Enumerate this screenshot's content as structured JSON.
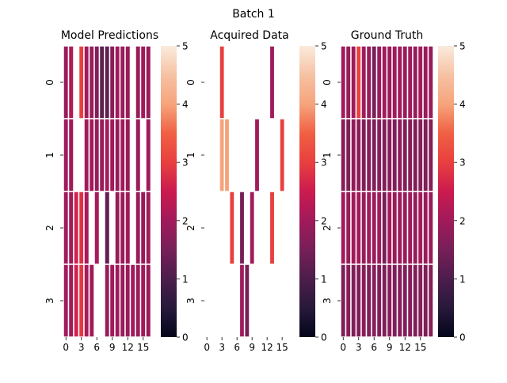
{
  "figure": {
    "title": "Batch 1"
  },
  "palette": [
    "#03051a",
    "#28193b",
    "#4c1d4b",
    "#761f58",
    "#a11a5b",
    "#cb1b4f",
    "#e83f3f",
    "#f06043",
    "#f6a47c",
    "#f6c2a3",
    "#faebdd"
  ],
  "chart_data": [
    {
      "type": "heatmap",
      "title": "Model Predictions",
      "rows": 4,
      "cols": 18,
      "row_tick_labels": [
        "0",
        "1",
        "2",
        "3"
      ],
      "col_tick_labels": [
        "0",
        "3",
        "6",
        "9",
        "12",
        "15"
      ],
      "colorbar": {
        "vmin": 0,
        "vmax": 5,
        "ticks": [
          "0",
          "1",
          "2",
          "3",
          "4",
          "5"
        ]
      },
      "values": [
        [
          1.9,
          2.2,
          null,
          3.0,
          2.0,
          1.9,
          1.6,
          1.2,
          1.2,
          1.7,
          2.0,
          1.9,
          1.9,
          null,
          1.9,
          2.0,
          1.9,
          null
        ],
        [
          2.0,
          2.0,
          null,
          null,
          2.0,
          2.0,
          1.9,
          1.9,
          2.1,
          2.0,
          1.9,
          2.0,
          1.9,
          null,
          1.9,
          null,
          2.0,
          null
        ],
        [
          2.0,
          2.0,
          2.6,
          2.8,
          2.1,
          null,
          2.1,
          null,
          1.3,
          null,
          1.9,
          1.9,
          2.0,
          null,
          1.9,
          1.9,
          2.0,
          null
        ],
        [
          2.0,
          2.0,
          2.6,
          2.9,
          2.1,
          2.0,
          null,
          null,
          1.9,
          2.0,
          2.0,
          1.9,
          1.9,
          2.0,
          1.9,
          2.0,
          1.9,
          null
        ]
      ]
    },
    {
      "type": "heatmap",
      "title": "Acquired Data",
      "rows": 4,
      "cols": 18,
      "row_tick_labels": [
        "0",
        "1",
        "2",
        "3"
      ],
      "col_tick_labels": [
        "0",
        "3",
        "6",
        "9",
        "12",
        "15"
      ],
      "colorbar": {
        "vmin": 0,
        "vmax": 5,
        "ticks": [
          "0",
          "1",
          "2",
          "3",
          "4",
          "5"
        ]
      },
      "values": [
        [
          null,
          null,
          null,
          3.0,
          null,
          null,
          null,
          null,
          null,
          null,
          null,
          null,
          null,
          2.0,
          null,
          null,
          null,
          null
        ],
        [
          null,
          null,
          null,
          4.0,
          4.0,
          null,
          null,
          null,
          null,
          null,
          2.0,
          null,
          null,
          null,
          null,
          3.0,
          null,
          null
        ],
        [
          null,
          null,
          null,
          null,
          null,
          3.0,
          null,
          1.5,
          null,
          2.0,
          null,
          null,
          null,
          3.0,
          null,
          null,
          null,
          null
        ],
        [
          null,
          null,
          null,
          null,
          null,
          null,
          null,
          2.0,
          1.5,
          null,
          null,
          null,
          null,
          null,
          null,
          null,
          null,
          null
        ]
      ]
    },
    {
      "type": "heatmap",
      "title": "Ground Truth",
      "rows": 4,
      "cols": 18,
      "row_tick_labels": [
        "0",
        "1",
        "2",
        "3"
      ],
      "col_tick_labels": [
        "0",
        "3",
        "6",
        "9",
        "12",
        "15"
      ],
      "colorbar": {
        "vmin": 0,
        "vmax": 5,
        "ticks": [
          "0",
          "1",
          "2",
          "3",
          "4",
          "5"
        ]
      },
      "values": [
        [
          2.0,
          1.9,
          2.0,
          3.0,
          2.0,
          1.9,
          1.5,
          1.9,
          2.0,
          1.9,
          2.0,
          2.0,
          1.9,
          2.0,
          1.9,
          2.0,
          1.9,
          1.9
        ],
        [
          1.7,
          1.6,
          1.8,
          1.8,
          1.6,
          1.7,
          1.6,
          1.7,
          1.6,
          1.7,
          1.6,
          1.8,
          1.6,
          1.7,
          1.6,
          1.7,
          1.6,
          1.7
        ],
        [
          2.0,
          1.9,
          2.0,
          2.0,
          1.9,
          2.0,
          1.9,
          2.0,
          1.5,
          2.0,
          1.9,
          2.0,
          1.9,
          2.0,
          1.9,
          2.0,
          1.9,
          1.9
        ],
        [
          1.6,
          1.7,
          1.6,
          1.6,
          1.7,
          1.6,
          1.7,
          1.6,
          1.6,
          1.7,
          1.6,
          1.7,
          1.6,
          1.7,
          1.6,
          1.7,
          1.6,
          1.7
        ]
      ]
    }
  ]
}
